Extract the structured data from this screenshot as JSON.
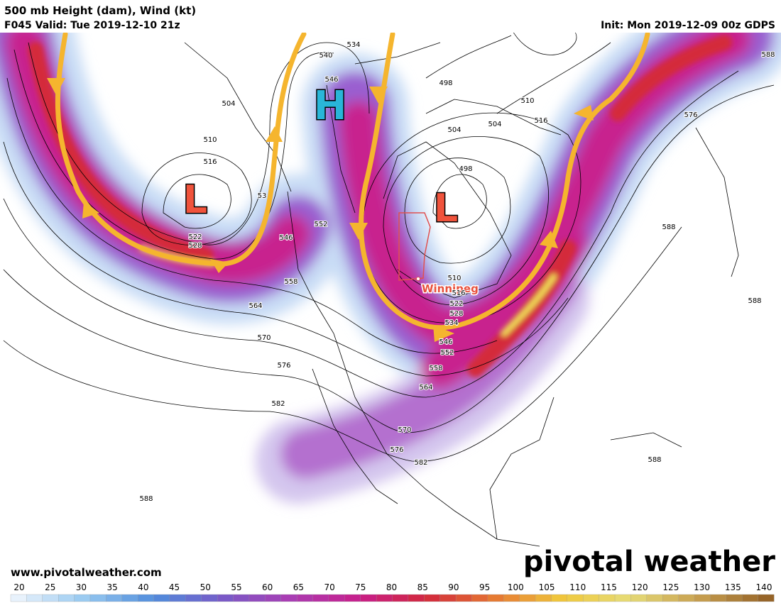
{
  "header": {
    "title": "500 mb Height (dam), Wind (kt)",
    "valid": "F045 Valid: Tue 2019-12-10 21z",
    "init": "Init: Mon 2019-12-09 00z GDPS"
  },
  "map": {
    "highs": [
      "H"
    ],
    "lows": [
      "L",
      "L"
    ],
    "city": "Winnipeg",
    "contour_labels": [
      534,
      540,
      546,
      498,
      504,
      510,
      504,
      504,
      516,
      576,
      588,
      498,
      510,
      516,
      53,
      522,
      528,
      546,
      552,
      558,
      564,
      570,
      576,
      582,
      588,
      588,
      510,
      516,
      522,
      528,
      534,
      546,
      552,
      558,
      564,
      570,
      576,
      582,
      588,
      588
    ]
  },
  "footer": {
    "website": "www.pivotalweather.com",
    "logo": "pivotal weather"
  },
  "colorbar": {
    "ticks": [
      20,
      25,
      30,
      35,
      40,
      45,
      50,
      55,
      60,
      65,
      70,
      75,
      80,
      85,
      90,
      95,
      100,
      105,
      110,
      115,
      120,
      125,
      130,
      135,
      140
    ]
  }
}
